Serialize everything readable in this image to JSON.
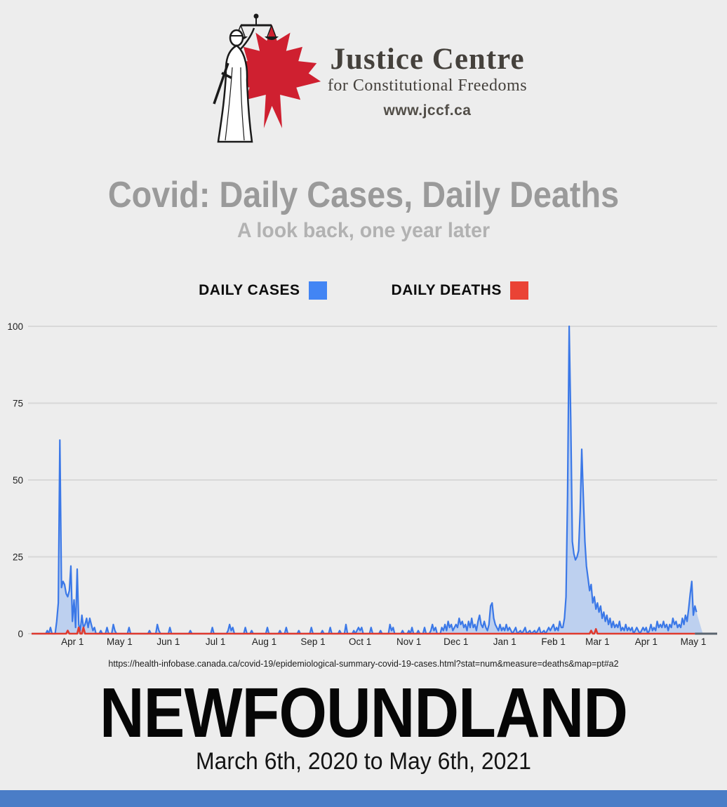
{
  "page": {
    "background": "#ededed",
    "footer_bar_color": "#4a7dc7"
  },
  "logo": {
    "org_name": "Justice Centre",
    "org_tagline": "for Constitutional Freedoms",
    "website": "www.jccf.ca",
    "leaf_color": "#cf2030",
    "text_color": "#45413c"
  },
  "title": "Covid: Daily Cases, Daily Deaths",
  "subtitle": "A look back, one year later",
  "legend": {
    "cases_label": "DAILY CASES",
    "deaths_label": "DAILY DEATHS",
    "cases_color": "#4285f4",
    "deaths_color": "#ea4335"
  },
  "source_url": "https://health-infobase.canada.ca/covid-19/epidemiological-summary-covid-19-cases.html?stat=num&measure=deaths&map=pt#a2",
  "region": "NEWFOUNDLAND",
  "date_range": "March 6th, 2020 to May 6th, 2021",
  "chart_data": {
    "type": "area",
    "title": "Covid daily cases and daily deaths, Newfoundland, March 6 2020 to May 6 2021",
    "grid": true,
    "legend_position": "top",
    "y_axis": {
      "range": [
        0,
        100
      ],
      "ticks": [
        0,
        25,
        50,
        75,
        100
      ],
      "tick_labels": [
        "0",
        "25",
        "50",
        "75",
        "100"
      ]
    },
    "x_axis": {
      "start_date": "2020-03-06",
      "end_date": "2021-05-06",
      "total_days": 427,
      "tick_days": [
        26,
        56,
        87,
        117,
        148,
        179,
        209,
        240,
        270,
        301,
        332,
        360,
        391,
        421
      ],
      "tick_labels": [
        "Apr 1",
        "May 1",
        "Jun 1",
        "Jul 1",
        "Aug 1",
        "Sep 1",
        "Oct 1",
        "Nov 1",
        "Dec 1",
        "Jan 1",
        "Feb 1",
        "Mar 1",
        "Apr 1",
        "May 1"
      ]
    },
    "series": [
      {
        "name": "Daily Cases",
        "color": "#3b78e7",
        "fill": "rgba(66,133,244,0.28)",
        "line_end_day": 423,
        "points": [
          [
            0,
            0
          ],
          [
            9,
            0
          ],
          [
            10,
            1
          ],
          [
            11,
            0
          ],
          [
            12,
            2
          ],
          [
            13,
            0
          ],
          [
            15,
            0
          ],
          [
            16,
            4
          ],
          [
            17,
            10
          ],
          [
            18,
            63
          ],
          [
            19,
            15
          ],
          [
            20,
            17
          ],
          [
            21,
            16
          ],
          [
            22,
            13
          ],
          [
            23,
            12
          ],
          [
            24,
            14
          ],
          [
            25,
            22
          ],
          [
            26,
            4
          ],
          [
            27,
            11
          ],
          [
            28,
            2
          ],
          [
            29,
            21
          ],
          [
            30,
            3
          ],
          [
            31,
            1
          ],
          [
            32,
            6
          ],
          [
            33,
            2
          ],
          [
            34,
            3
          ],
          [
            35,
            5
          ],
          [
            36,
            2
          ],
          [
            37,
            5
          ],
          [
            38,
            3
          ],
          [
            39,
            1
          ],
          [
            40,
            2
          ],
          [
            41,
            0
          ],
          [
            43,
            0
          ],
          [
            44,
            1
          ],
          [
            45,
            0
          ],
          [
            47,
            0
          ],
          [
            48,
            2
          ],
          [
            49,
            0
          ],
          [
            51,
            0
          ],
          [
            52,
            3
          ],
          [
            53,
            1
          ],
          [
            54,
            0
          ],
          [
            61,
            0
          ],
          [
            62,
            2
          ],
          [
            63,
            0
          ],
          [
            74,
            0
          ],
          [
            75,
            1
          ],
          [
            76,
            0
          ],
          [
            79,
            0
          ],
          [
            80,
            3
          ],
          [
            81,
            1
          ],
          [
            82,
            0
          ],
          [
            87,
            0
          ],
          [
            88,
            2
          ],
          [
            89,
            0
          ],
          [
            100,
            0
          ],
          [
            101,
            1
          ],
          [
            102,
            0
          ],
          [
            114,
            0
          ],
          [
            115,
            2
          ],
          [
            116,
            0
          ],
          [
            124,
            0
          ],
          [
            125,
            1
          ],
          [
            126,
            3
          ],
          [
            127,
            1
          ],
          [
            128,
            2
          ],
          [
            129,
            0
          ],
          [
            135,
            0
          ],
          [
            136,
            2
          ],
          [
            137,
            0
          ],
          [
            139,
            0
          ],
          [
            140,
            1
          ],
          [
            141,
            0
          ],
          [
            149,
            0
          ],
          [
            150,
            2
          ],
          [
            151,
            0
          ],
          [
            157,
            0
          ],
          [
            158,
            1
          ],
          [
            159,
            0
          ],
          [
            161,
            0
          ],
          [
            162,
            2
          ],
          [
            163,
            0
          ],
          [
            169,
            0
          ],
          [
            170,
            1
          ],
          [
            171,
            0
          ],
          [
            177,
            0
          ],
          [
            178,
            2
          ],
          [
            179,
            0
          ],
          [
            184,
            0
          ],
          [
            185,
            1
          ],
          [
            186,
            0
          ],
          [
            189,
            0
          ],
          [
            190,
            2
          ],
          [
            191,
            0
          ],
          [
            195,
            0
          ],
          [
            196,
            1
          ],
          [
            197,
            0
          ],
          [
            199,
            0
          ],
          [
            200,
            3
          ],
          [
            201,
            0
          ],
          [
            204,
            0
          ],
          [
            205,
            1
          ],
          [
            206,
            0
          ],
          [
            208,
            2
          ],
          [
            209,
            1
          ],
          [
            210,
            2
          ],
          [
            211,
            0
          ],
          [
            215,
            0
          ],
          [
            216,
            2
          ],
          [
            217,
            0
          ],
          [
            221,
            0
          ],
          [
            222,
            1
          ],
          [
            223,
            0
          ],
          [
            227,
            0
          ],
          [
            228,
            3
          ],
          [
            229,
            1
          ],
          [
            230,
            2
          ],
          [
            231,
            0
          ],
          [
            235,
            0
          ],
          [
            236,
            1
          ],
          [
            237,
            0
          ],
          [
            239,
            0
          ],
          [
            240,
            1
          ],
          [
            241,
            0
          ],
          [
            242,
            2
          ],
          [
            243,
            0
          ],
          [
            245,
            0
          ],
          [
            246,
            1
          ],
          [
            247,
            0
          ],
          [
            249,
            0
          ],
          [
            250,
            2
          ],
          [
            251,
            0
          ],
          [
            253,
            0
          ],
          [
            254,
            1
          ],
          [
            255,
            3
          ],
          [
            256,
            1
          ],
          [
            257,
            2
          ],
          [
            258,
            0
          ],
          [
            260,
            0
          ],
          [
            261,
            2
          ],
          [
            262,
            1
          ],
          [
            263,
            3
          ],
          [
            264,
            1
          ],
          [
            265,
            4
          ],
          [
            266,
            2
          ],
          [
            267,
            3
          ],
          [
            268,
            1
          ],
          [
            270,
            3
          ],
          [
            271,
            2
          ],
          [
            272,
            5
          ],
          [
            273,
            3
          ],
          [
            274,
            4
          ],
          [
            275,
            2
          ],
          [
            276,
            3
          ],
          [
            277,
            1
          ],
          [
            278,
            4
          ],
          [
            279,
            2
          ],
          [
            280,
            5
          ],
          [
            281,
            2
          ],
          [
            282,
            3
          ],
          [
            283,
            1
          ],
          [
            284,
            4
          ],
          [
            285,
            6
          ],
          [
            286,
            3
          ],
          [
            287,
            2
          ],
          [
            288,
            4
          ],
          [
            289,
            2
          ],
          [
            290,
            1
          ],
          [
            291,
            3
          ],
          [
            292,
            9
          ],
          [
            293,
            10
          ],
          [
            294,
            5
          ],
          [
            295,
            3
          ],
          [
            296,
            2
          ],
          [
            297,
            1
          ],
          [
            298,
            3
          ],
          [
            299,
            1
          ],
          [
            300,
            2
          ],
          [
            301,
            1
          ],
          [
            302,
            3
          ],
          [
            303,
            1
          ],
          [
            304,
            2
          ],
          [
            305,
            1
          ],
          [
            306,
            0
          ],
          [
            308,
            2
          ],
          [
            309,
            0
          ],
          [
            311,
            1
          ],
          [
            312,
            0
          ],
          [
            314,
            2
          ],
          [
            315,
            0
          ],
          [
            317,
            1
          ],
          [
            318,
            0
          ],
          [
            320,
            1
          ],
          [
            321,
            0
          ],
          [
            323,
            2
          ],
          [
            324,
            0
          ],
          [
            326,
            1
          ],
          [
            327,
            0
          ],
          [
            329,
            2
          ],
          [
            330,
            1
          ],
          [
            331,
            2
          ],
          [
            332,
            3
          ],
          [
            333,
            1
          ],
          [
            334,
            2
          ],
          [
            335,
            1
          ],
          [
            336,
            4
          ],
          [
            337,
            2
          ],
          [
            338,
            2
          ],
          [
            339,
            5
          ],
          [
            340,
            12
          ],
          [
            341,
            45
          ],
          [
            342,
            100
          ],
          [
            343,
            70
          ],
          [
            344,
            30
          ],
          [
            345,
            26
          ],
          [
            346,
            24
          ],
          [
            347,
            25
          ],
          [
            348,
            27
          ],
          [
            349,
            40
          ],
          [
            350,
            60
          ],
          [
            351,
            45
          ],
          [
            352,
            30
          ],
          [
            353,
            22
          ],
          [
            354,
            18
          ],
          [
            355,
            14
          ],
          [
            356,
            16
          ],
          [
            357,
            10
          ],
          [
            358,
            12
          ],
          [
            359,
            8
          ],
          [
            360,
            10
          ],
          [
            361,
            7
          ],
          [
            362,
            9
          ],
          [
            363,
            5
          ],
          [
            364,
            7
          ],
          [
            365,
            4
          ],
          [
            366,
            6
          ],
          [
            367,
            3
          ],
          [
            368,
            5
          ],
          [
            369,
            2
          ],
          [
            370,
            4
          ],
          [
            371,
            2
          ],
          [
            372,
            3
          ],
          [
            373,
            2
          ],
          [
            374,
            4
          ],
          [
            375,
            1
          ],
          [
            376,
            2
          ],
          [
            377,
            1
          ],
          [
            378,
            3
          ],
          [
            379,
            1
          ],
          [
            380,
            2
          ],
          [
            381,
            1
          ],
          [
            382,
            2
          ],
          [
            383,
            0
          ],
          [
            384,
            1
          ],
          [
            385,
            2
          ],
          [
            386,
            1
          ],
          [
            387,
            0
          ],
          [
            389,
            2
          ],
          [
            390,
            1
          ],
          [
            391,
            2
          ],
          [
            392,
            0
          ],
          [
            393,
            1
          ],
          [
            394,
            3
          ],
          [
            395,
            1
          ],
          [
            396,
            2
          ],
          [
            397,
            1
          ],
          [
            398,
            4
          ],
          [
            399,
            2
          ],
          [
            400,
            3
          ],
          [
            401,
            2
          ],
          [
            402,
            4
          ],
          [
            403,
            2
          ],
          [
            404,
            3
          ],
          [
            405,
            1
          ],
          [
            406,
            3
          ],
          [
            407,
            2
          ],
          [
            408,
            5
          ],
          [
            409,
            3
          ],
          [
            410,
            4
          ],
          [
            411,
            2
          ],
          [
            412,
            3
          ],
          [
            413,
            2
          ],
          [
            414,
            5
          ],
          [
            415,
            3
          ],
          [
            416,
            6
          ],
          [
            417,
            4
          ],
          [
            418,
            8
          ],
          [
            419,
            13
          ],
          [
            420,
            17
          ],
          [
            421,
            6
          ],
          [
            422,
            9
          ],
          [
            423,
            7
          ],
          [
            427,
            0
          ]
        ]
      },
      {
        "name": "Daily Deaths",
        "color": "#e03a2d",
        "line_end_day": 422,
        "points": [
          [
            0,
            0
          ],
          [
            22,
            0
          ],
          [
            23,
            1
          ],
          [
            24,
            0
          ],
          [
            29,
            0
          ],
          [
            30,
            2
          ],
          [
            31,
            0
          ],
          [
            32,
            0
          ],
          [
            33,
            2
          ],
          [
            34,
            0
          ],
          [
            355,
            0
          ],
          [
            356,
            1
          ],
          [
            357,
            0
          ],
          [
            358,
            0
          ],
          [
            359,
            1.5
          ],
          [
            360,
            0
          ],
          [
            422,
            0
          ]
        ]
      }
    ],
    "axis_tail_color": "#5a646e",
    "gridline_color": "#d8d8d8"
  }
}
